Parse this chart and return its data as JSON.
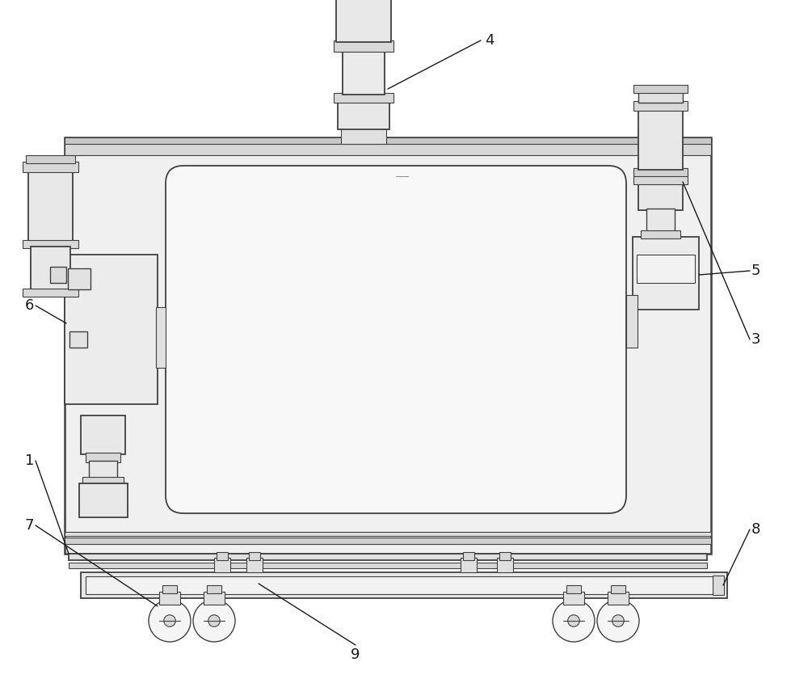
{
  "bg_color": "#ffffff",
  "line_color": "#404040",
  "lw_main": 1.3,
  "lw_thick": 1.8,
  "lw_thin": 0.8,
  "label_fontsize": 13
}
